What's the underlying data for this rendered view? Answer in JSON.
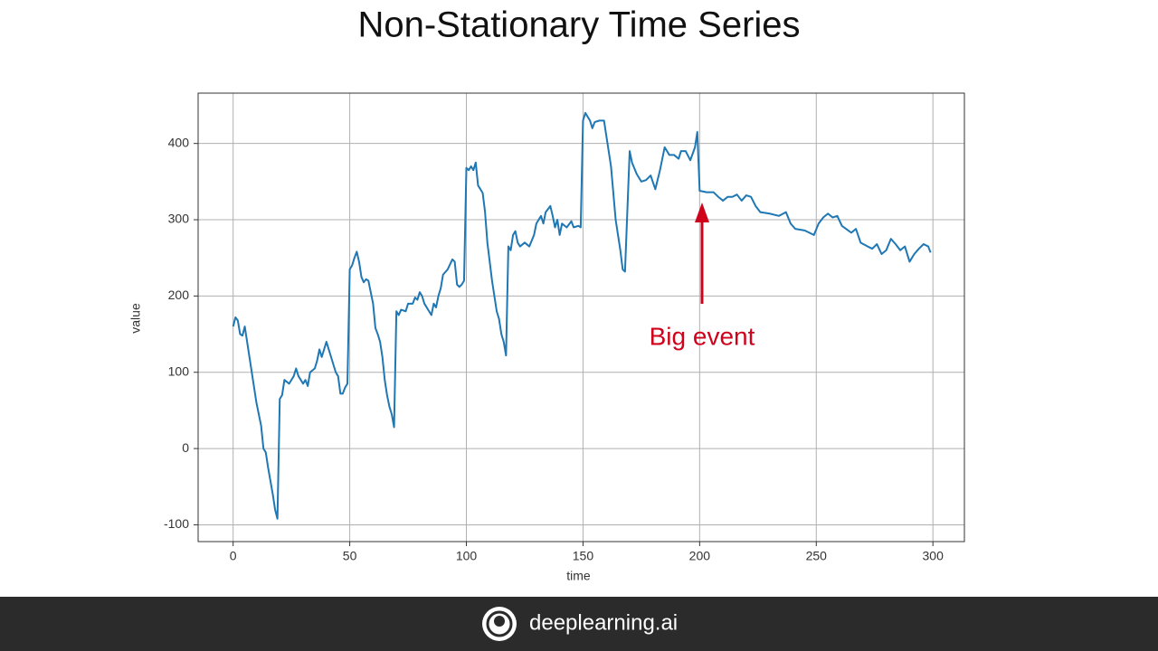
{
  "chart_data": {
    "type": "line",
    "title": "Non-Stationary Time Series",
    "x_label": "time",
    "y_label": "value",
    "annotation": "Big event",
    "x": [
      0,
      1,
      2,
      3,
      4,
      5,
      6,
      8,
      10,
      12,
      13,
      14,
      15,
      17,
      18,
      19,
      20,
      21,
      22,
      24,
      26,
      27,
      28,
      30,
      31,
      32,
      33,
      35,
      36,
      37,
      38,
      40,
      41,
      42,
      44,
      45,
      46,
      47,
      48,
      49,
      50,
      51,
      52,
      53,
      54,
      55,
      56,
      57,
      58,
      60,
      61,
      62,
      63,
      64,
      65,
      66,
      67,
      68,
      69,
      70,
      71,
      72,
      74,
      75,
      77,
      78,
      79,
      80,
      81,
      82,
      84,
      85,
      86,
      87,
      88,
      89,
      90,
      92,
      94,
      95,
      96,
      97,
      98,
      99,
      100,
      101,
      102,
      103,
      104,
      105,
      106,
      107,
      108,
      109,
      110,
      111,
      112,
      113,
      114,
      115,
      116,
      117,
      118,
      119,
      120,
      121,
      122,
      123,
      125,
      127,
      129,
      130,
      132,
      133,
      134,
      136,
      137,
      138,
      139,
      140,
      141,
      143,
      145,
      146,
      148,
      149,
      150,
      151,
      153,
      154,
      155,
      157,
      159,
      160,
      162,
      164,
      166,
      167,
      168,
      170,
      171,
      173,
      175,
      177,
      179,
      181,
      183,
      185,
      187,
      189,
      191,
      192,
      194,
      196,
      198,
      199,
      200,
      203,
      206,
      208,
      210,
      212,
      214,
      216,
      218,
      220,
      222,
      224,
      226,
      230,
      234,
      237,
      239,
      241,
      245,
      249,
      251,
      253,
      255,
      257,
      259,
      261,
      265,
      267,
      269,
      272,
      274,
      276,
      278,
      280,
      282,
      284,
      286,
      288,
      290,
      292,
      294,
      296,
      298,
      299
    ],
    "series": [
      {
        "name": "value",
        "color": "#1f77b4",
        "values": [
          160,
          172,
          168,
          150,
          148,
          160,
          140,
          100,
          60,
          30,
          0,
          -5,
          -25,
          -60,
          -80,
          -92,
          65,
          70,
          90,
          85,
          95,
          105,
          95,
          85,
          90,
          82,
          100,
          105,
          115,
          130,
          120,
          140,
          130,
          120,
          100,
          95,
          72,
          72,
          80,
          85,
          235,
          240,
          250,
          258,
          245,
          225,
          218,
          222,
          220,
          190,
          158,
          150,
          140,
          120,
          90,
          70,
          55,
          45,
          28,
          180,
          175,
          182,
          180,
          190,
          190,
          198,
          195,
          205,
          200,
          190,
          180,
          175,
          190,
          185,
          200,
          210,
          228,
          235,
          248,
          245,
          215,
          212,
          215,
          220,
          368,
          365,
          370,
          365,
          375,
          345,
          340,
          335,
          310,
          270,
          245,
          220,
          200,
          180,
          170,
          150,
          140,
          122,
          265,
          260,
          280,
          285,
          270,
          265,
          270,
          265,
          280,
          295,
          305,
          295,
          310,
          318,
          305,
          290,
          300,
          280,
          295,
          290,
          298,
          290,
          292,
          290,
          430,
          440,
          430,
          420,
          428,
          430,
          430,
          410,
          370,
          300,
          260,
          235,
          232,
          390,
          375,
          360,
          350,
          352,
          358,
          340,
          365,
          395,
          385,
          385,
          380,
          390,
          390,
          378,
          395,
          415,
          338,
          336,
          336,
          330,
          325,
          330,
          330,
          333,
          325,
          332,
          330,
          318,
          310,
          308,
          305,
          310,
          295,
          288,
          286,
          280,
          295,
          303,
          308,
          303,
          305,
          292,
          283,
          288,
          270,
          265,
          262,
          268,
          255,
          260,
          275,
          268,
          260,
          265,
          245,
          255,
          262,
          268,
          265,
          257
        ]
      }
    ],
    "xlim": [
      -15,
      313.5
    ],
    "ylim": [
      -122,
      466
    ],
    "xticks": [
      0,
      50,
      100,
      150,
      200,
      250,
      300
    ],
    "yticks": [
      -100,
      0,
      100,
      200,
      300,
      400
    ],
    "grid": true
  },
  "footer": {
    "brand": "deeplearning.ai"
  }
}
